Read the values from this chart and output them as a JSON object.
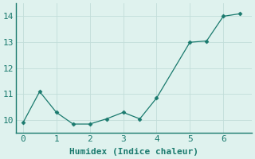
{
  "x": [
    0,
    0.5,
    1.0,
    1.5,
    2.0,
    2.5,
    3.0,
    3.5,
    4.0,
    5.0,
    5.5,
    6.0,
    6.5
  ],
  "y": [
    9.9,
    11.1,
    10.3,
    9.85,
    9.85,
    10.05,
    10.3,
    10.05,
    10.85,
    13.0,
    13.05,
    14.0,
    14.1
  ],
  "xlabel": "Humidex (Indice chaleur)",
  "xticks": [
    0,
    1,
    2,
    3,
    4,
    5,
    6
  ],
  "yticks": [
    10,
    11,
    12,
    13,
    14
  ],
  "xlim": [
    -0.2,
    6.85
  ],
  "ylim": [
    9.5,
    14.5
  ],
  "line_color": "#1a7a6e",
  "marker_color": "#1a7a6e",
  "bg_color": "#dff2ee",
  "grid_color": "#c2ddd9",
  "axis_color": "#1a7a6e",
  "label_fontsize": 8,
  "tick_fontsize": 8
}
